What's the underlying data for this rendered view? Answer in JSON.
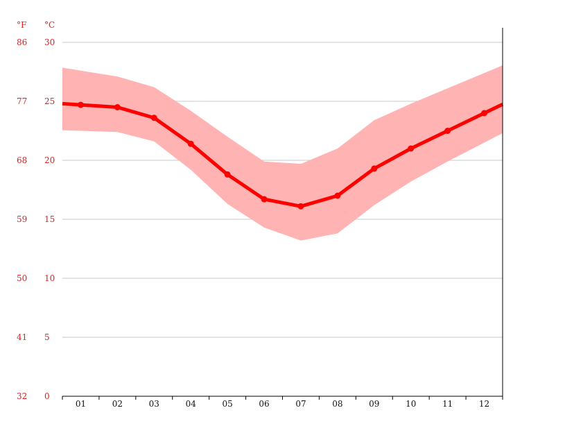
{
  "chart_data": {
    "type": "line",
    "y_unit_left": "°F",
    "y_unit_right": "°C",
    "categories": [
      "01",
      "02",
      "03",
      "04",
      "05",
      "06",
      "07",
      "08",
      "09",
      "10",
      "11",
      "12"
    ],
    "mean_c": [
      24.7,
      24.5,
      23.6,
      21.4,
      18.8,
      16.7,
      16.1,
      17.0,
      19.3,
      21.0,
      22.5,
      24.0
    ],
    "band_upper_c": [
      27.6,
      27.1,
      26.2,
      24.2,
      22.0,
      19.9,
      19.7,
      21.0,
      23.4,
      24.8,
      26.1,
      27.4
    ],
    "band_lower_c": [
      22.5,
      22.4,
      21.6,
      19.2,
      16.3,
      14.3,
      13.2,
      13.8,
      16.2,
      18.2,
      19.9,
      21.5
    ],
    "ylim_c": [
      0,
      30
    ],
    "yticks_c": [
      "30",
      "25",
      "20",
      "15",
      "10",
      "5",
      "0"
    ],
    "yticks_f": [
      "86",
      "77",
      "68",
      "59",
      "50",
      "41",
      "32"
    ],
    "grid": true,
    "colors": {
      "line": "#ff0000",
      "band": "#ffb3b3",
      "tick_text": "#e02020",
      "grid": "#c8c8c8"
    }
  }
}
